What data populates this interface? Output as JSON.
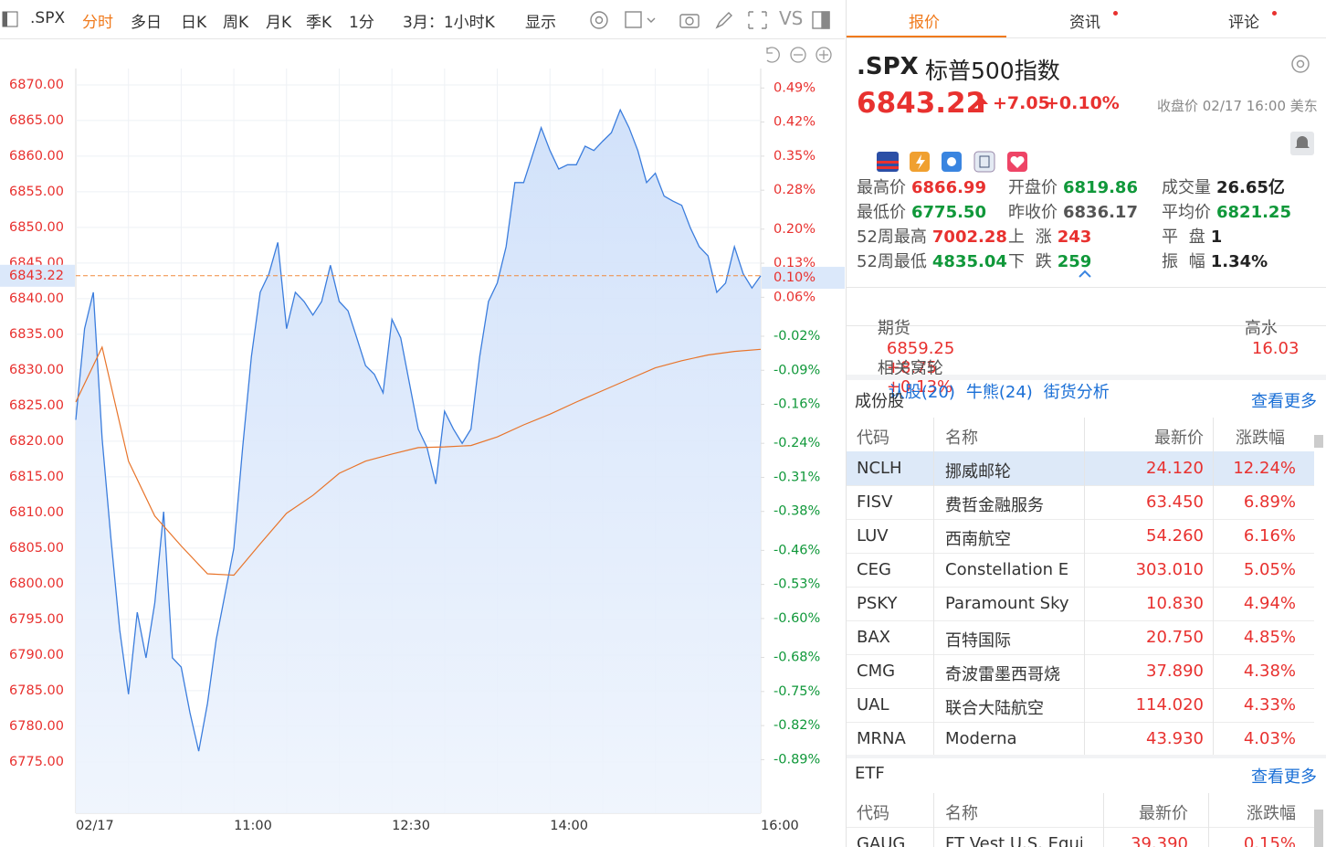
{
  "toolbar": {
    "symbol": ".SPX",
    "items": [
      "分时",
      "多日",
      "日K",
      "周K",
      "月K",
      "季K",
      "1分",
      "3月：1小时K",
      "显示",
      "VS"
    ]
  },
  "chart": {
    "type": "line",
    "xlim": [
      0,
      390
    ],
    "xticks": [
      {
        "value": 0,
        "label": "02/17"
      },
      {
        "value": 90,
        "label": "11:00"
      },
      {
        "value": 180,
        "label": "12:30"
      },
      {
        "value": 270,
        "label": "14:00"
      },
      {
        "value": 390,
        "label": "16:00"
      }
    ],
    "ylim": [
      6767.8,
      6872.3
    ],
    "yticks": [
      {
        "value": 6870,
        "label": "6870.00"
      },
      {
        "value": 6865,
        "label": "6865.00"
      },
      {
        "value": 6860,
        "label": "6860.00"
      },
      {
        "value": 6855,
        "label": "6855.00"
      },
      {
        "value": 6850,
        "label": "6850.00"
      },
      {
        "value": 6845,
        "label": "6845.00"
      },
      {
        "value": 6840,
        "label": "6840.00"
      },
      {
        "value": 6835,
        "label": "6835.00"
      },
      {
        "value": 6830,
        "label": "6830.00"
      },
      {
        "value": 6825,
        "label": "6825.00"
      },
      {
        "value": 6820,
        "label": "6820.00"
      },
      {
        "value": 6815,
        "label": "6815.00"
      },
      {
        "value": 6810,
        "label": "6810.00"
      },
      {
        "value": 6805,
        "label": "6805.00"
      },
      {
        "value": 6800,
        "label": "6800.00"
      },
      {
        "value": 6795,
        "label": "6795.00"
      },
      {
        "value": 6790,
        "label": "6790.00"
      },
      {
        "value": 6785,
        "label": "6785.00"
      },
      {
        "value": 6780,
        "label": "6780.00"
      },
      {
        "value": 6775,
        "label": "6775.00"
      }
    ],
    "y2lim": [
      -1.0,
      0.53
    ],
    "y2ticks": [
      {
        "value": 0.49,
        "label": "0.49%"
      },
      {
        "value": 0.42,
        "label": "0.42%"
      },
      {
        "value": 0.35,
        "label": "0.35%"
      },
      {
        "value": 0.28,
        "label": "0.28%"
      },
      {
        "value": 0.2,
        "label": "0.20%"
      },
      {
        "value": 0.13,
        "label": "0.13%"
      },
      {
        "value": 0.06,
        "label": "0.06%"
      },
      {
        "value": -0.02,
        "label": "-0.02%"
      },
      {
        "value": -0.09,
        "label": "-0.09%"
      },
      {
        "value": -0.16,
        "label": "-0.16%"
      },
      {
        "value": -0.24,
        "label": "-0.24%"
      },
      {
        "value": -0.31,
        "label": "-0.31%"
      },
      {
        "value": -0.38,
        "label": "-0.38%"
      },
      {
        "value": -0.46,
        "label": "-0.46%"
      },
      {
        "value": -0.53,
        "label": "-0.53%"
      },
      {
        "value": -0.6,
        "label": "-0.60%"
      },
      {
        "value": -0.68,
        "label": "-0.68%"
      },
      {
        "value": -0.75,
        "label": "-0.75%"
      },
      {
        "value": -0.82,
        "label": "-0.82%"
      },
      {
        "value": -0.89,
        "label": "-0.89%"
      }
    ],
    "grid": true,
    "reference": {
      "value": 6843.22,
      "label": "6843.22",
      "pct": {
        "value": 0.1,
        "label": "0.10%"
      },
      "color": "#f08a3c"
    },
    "series": [
      {
        "color": "#3b7ddd",
        "x": [
          0,
          5,
          10,
          15,
          20,
          25,
          30,
          35,
          40,
          45,
          50,
          55,
          60,
          65,
          70,
          75,
          80,
          85,
          90,
          95,
          100,
          105,
          110,
          115,
          120,
          125,
          130,
          135,
          140,
          145,
          150,
          155,
          160,
          165,
          170,
          175,
          180,
          185,
          190,
          195,
          200,
          205,
          210,
          215,
          220,
          225,
          230,
          235,
          240,
          245,
          250,
          255,
          260,
          265,
          270,
          275,
          280,
          285,
          290,
          295,
          300,
          305,
          310,
          315,
          320,
          325,
          330,
          335,
          340,
          345,
          350,
          355,
          360,
          365,
          370,
          375,
          380,
          385,
          390
        ],
        "values": [
          6823.0,
          6835.8,
          6840.9,
          6820.4,
          6806.3,
          6793.5,
          6784.5,
          6796.0,
          6789.6,
          6797.3,
          6810.1,
          6789.6,
          6788.3,
          6781.9,
          6776.5,
          6783.2,
          6792.2,
          6798.6,
          6805.0,
          6819.1,
          6831.9,
          6840.9,
          6843.5,
          6847.9,
          6835.8,
          6840.9,
          6839.6,
          6837.7,
          6839.6,
          6844.7,
          6839.6,
          6838.3,
          6834.5,
          6830.6,
          6829.4,
          6826.8,
          6837.1,
          6834.5,
          6828.1,
          6821.7,
          6819.1,
          6814.0,
          6824.2,
          6821.7,
          6819.7,
          6821.7,
          6831.9,
          6839.6,
          6842.2,
          6847.3,
          6856.3,
          6856.3,
          6860.1,
          6864.0,
          6860.8,
          6858.2,
          6858.8,
          6858.8,
          6861.4,
          6860.8,
          6862.1,
          6863.3,
          6866.5,
          6864.0,
          6860.8,
          6856.3,
          6857.6,
          6854.4,
          6853.7,
          6853.1,
          6849.9,
          6847.3,
          6846.0,
          6840.9,
          6842.2,
          6847.3,
          6843.5,
          6841.5,
          6843.22
        ]
      },
      {
        "color": "#e8742a",
        "x": [
          0,
          15,
          30,
          45,
          60,
          75,
          90,
          105,
          120,
          135,
          150,
          165,
          180,
          195,
          210,
          225,
          240,
          255,
          270,
          285,
          300,
          315,
          330,
          345,
          360,
          375,
          390
        ],
        "values": [
          6825.5,
          6833.2,
          6817.2,
          6809.5,
          6805.3,
          6801.4,
          6801.2,
          6805.6,
          6809.9,
          6812.4,
          6815.5,
          6817.2,
          6818.2,
          6819.1,
          6819.2,
          6819.4,
          6820.6,
          6822.3,
          6823.8,
          6825.5,
          6827.1,
          6828.7,
          6830.3,
          6831.3,
          6832.1,
          6832.6,
          6832.9
        ]
      }
    ]
  },
  "tabs": [
    "报价",
    "资讯",
    "评论"
  ],
  "quote": {
    "symbol": ".SPX",
    "name": "标普500指数",
    "price": "6843.22",
    "change": "+7.05",
    "change_pct": "+0.10%",
    "status": "收盘价 02/17 16:00 美东",
    "stats": [
      [
        {
          "label": "最高价",
          "value": "6866.99",
          "color": "#e8312f"
        },
        {
          "label": "开盘价",
          "value": "6819.86",
          "color": "#10983a"
        },
        {
          "label": "成交量",
          "value": "26.65亿",
          "color": "#222222"
        }
      ],
      [
        {
          "label": "最低价",
          "value": "6775.50",
          "color": "#10983a"
        },
        {
          "label": "昨收价",
          "value": "6836.17",
          "color": "#555555"
        },
        {
          "label": "平均价",
          "value": "6821.25",
          "color": "#10983a"
        }
      ],
      [
        {
          "label": "52周最高",
          "value": "7002.28",
          "color": "#e8312f"
        },
        {
          "label": "上 涨",
          "value": "243",
          "color": "#e8312f"
        },
        {
          "label": "平 盘",
          "value": "1",
          "color": "#222222"
        }
      ],
      [
        {
          "label": "52周最低",
          "value": "4835.04",
          "color": "#10983a"
        },
        {
          "label": "下 跌",
          "value": "259",
          "color": "#10983a"
        },
        {
          "label": "振 幅",
          "value": "1.34%",
          "color": "#222222"
        }
      ]
    ],
    "futures": {
      "label": "期货",
      "price": "6859.25",
      "change": "+8.75",
      "change_pct": "+0.13%",
      "premium_label": "高水",
      "premium": "16.03"
    },
    "warrants": {
      "label": "相关窝轮",
      "links": [
        "认股(20)",
        "牛熊(24)",
        "街货分析"
      ]
    }
  },
  "constituents": {
    "title": "成份股",
    "more": "查看更多",
    "headers": [
      "代码",
      "名称",
      "最新价",
      "涨跌幅"
    ],
    "rows": [
      [
        "NCLH",
        "挪威邮轮",
        "24.120",
        "12.24%"
      ],
      [
        "FISV",
        "费哲金融服务",
        "63.450",
        "6.89%"
      ],
      [
        "LUV",
        "西南航空",
        "54.260",
        "6.16%"
      ],
      [
        "CEG",
        "Constellation E",
        "303.010",
        "5.05%"
      ],
      [
        "PSKY",
        "Paramount Sky",
        "10.830",
        "4.94%"
      ],
      [
        "BAX",
        "百特国际",
        "20.750",
        "4.85%"
      ],
      [
        "CMG",
        "奇波雷墨西哥烧",
        "37.890",
        "4.38%"
      ],
      [
        "UAL",
        "联合大陆航空",
        "114.020",
        "4.33%"
      ],
      [
        "MRNA",
        "Moderna",
        "43.930",
        "4.03%"
      ]
    ]
  },
  "etf": {
    "title": "ETF",
    "more": "查看更多",
    "headers": [
      "代码",
      "名称",
      "最新价",
      "涨跌幅"
    ],
    "rows": [
      [
        "GAUG",
        "FT Vest U.S. Equi",
        "39.390",
        "0.15%"
      ]
    ]
  }
}
